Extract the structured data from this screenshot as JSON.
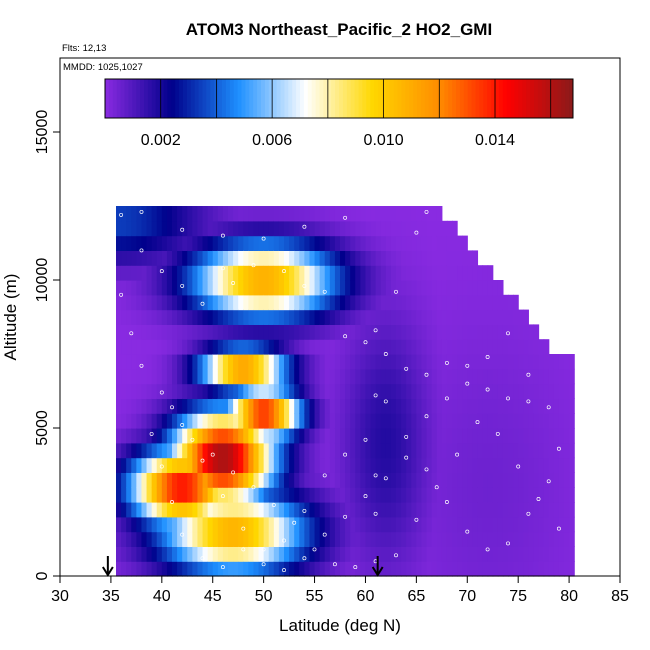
{
  "chart_data": {
    "type": "heatmap",
    "title": "ATOM3 Northeast_Pacific_2 HO2_GMI",
    "flights_label": "Flts: 12,13",
    "mmdd_label": "MMDD: 1025,1027",
    "xlabel": "Latitude (deg N)",
    "ylabel": "Altitude (m)",
    "xlim": [
      30,
      85
    ],
    "ylim": [
      0,
      17500
    ],
    "x_ticks": [
      "30",
      "35",
      "40",
      "45",
      "50",
      "55",
      "60",
      "65",
      "70",
      "75",
      "80",
      "85"
    ],
    "y_ticks": [
      "0",
      "5000",
      "10000",
      "15000"
    ],
    "colorbar": {
      "range": [
        0,
        0.0168
      ],
      "tick_labels": [
        "0.002",
        "0.006",
        "0.010",
        "0.014"
      ],
      "tick_values": [
        0.002,
        0.006,
        0.01,
        0.014
      ],
      "colors": [
        "#8a2be2",
        "#00008b",
        "#1e90ff",
        "#ffffff",
        "#ffd700",
        "#ff8c00",
        "#ff0000",
        "#8b1a1a"
      ]
    },
    "arrows_at_latitude": [
      34.7,
      61.2
    ],
    "lat_step": 0.5,
    "alt_step": 500,
    "columns": [
      {
        "lat": 35.5,
        "alt_min": 0,
        "alt_max": 12500
      },
      {
        "lat": 38,
        "alt_min": 0,
        "alt_max": 12500
      },
      {
        "lat": 40,
        "alt_min": 0,
        "alt_max": 12500
      },
      {
        "lat": 50,
        "alt_min": 0,
        "alt_max": 12500
      },
      {
        "lat": 60,
        "alt_min": 0,
        "alt_max": 12500
      },
      {
        "lat": 66.5,
        "alt_min": 0,
        "alt_max": 12500
      },
      {
        "lat": 70,
        "alt_min": 0,
        "alt_max": 11000
      },
      {
        "lat": 75,
        "alt_min": 0,
        "alt_max": 9000
      },
      {
        "lat": 78,
        "alt_min": 0,
        "alt_max": 7500
      },
      {
        "lat": 80.3,
        "alt_min": 0,
        "alt_max": 7500
      }
    ],
    "features": [
      {
        "lat": 46,
        "alt": 4000,
        "value": 0.0165,
        "sigma_lat": 3.5,
        "sigma_alt": 1100
      },
      {
        "lat": 42,
        "alt": 3000,
        "value": 0.0145,
        "sigma_lat": 3.5,
        "sigma_alt": 900
      },
      {
        "lat": 50,
        "alt": 5500,
        "value": 0.0145,
        "sigma_lat": 2.5,
        "sigma_alt": 600
      },
      {
        "lat": 48,
        "alt": 7000,
        "value": 0.0125,
        "sigma_lat": 3,
        "sigma_alt": 500
      },
      {
        "lat": 50,
        "alt": 10000,
        "value": 0.0112,
        "sigma_lat": 5,
        "sigma_alt": 900
      },
      {
        "lat": 47,
        "alt": 1500,
        "value": 0.011,
        "sigma_lat": 5,
        "sigma_alt": 1000
      },
      {
        "lat": 35.5,
        "alt": 12000,
        "value": 0.0035,
        "sigma_lat": 6,
        "sigma_alt": 1000
      },
      {
        "lat": 62,
        "alt": 4500,
        "value": 0.0018,
        "sigma_lat": 3,
        "sigma_alt": 3000
      },
      {
        "lat": 72,
        "alt": 3000,
        "value": 0.0005,
        "sigma_lat": 6,
        "sigma_alt": 4000
      }
    ],
    "observations": [
      [
        36,
        12200
      ],
      [
        38,
        11000
      ],
      [
        40,
        10300
      ],
      [
        42,
        9800
      ],
      [
        44,
        9200
      ],
      [
        46,
        10400
      ],
      [
        47,
        9900
      ],
      [
        49,
        10500
      ],
      [
        52,
        10300
      ],
      [
        54,
        9800
      ],
      [
        56,
        9600
      ],
      [
        58,
        8100
      ],
      [
        60,
        7900
      ],
      [
        62,
        7500
      ],
      [
        64,
        7000
      ],
      [
        66,
        6800
      ],
      [
        68,
        7200
      ],
      [
        70,
        6500
      ],
      [
        72,
        6300
      ],
      [
        74,
        6000
      ],
      [
        76,
        5900
      ],
      [
        78,
        5700
      ],
      [
        79,
        4300
      ],
      [
        78,
        3200
      ],
      [
        76,
        2100
      ],
      [
        74,
        1100
      ],
      [
        72,
        900
      ],
      [
        70,
        1500
      ],
      [
        68,
        2500
      ],
      [
        66,
        3600
      ],
      [
        64,
        4700
      ],
      [
        62,
        5900
      ],
      [
        60,
        4600
      ],
      [
        58,
        4100
      ],
      [
        56,
        3400
      ],
      [
        54,
        2200
      ],
      [
        52,
        1200
      ],
      [
        50,
        900
      ],
      [
        48,
        1600
      ],
      [
        46,
        2700
      ],
      [
        44,
        3900
      ],
      [
        42,
        5100
      ],
      [
        40,
        6200
      ],
      [
        41,
        5700
      ],
      [
        43,
        4600
      ],
      [
        45,
        4100
      ],
      [
        47,
        3500
      ],
      [
        49,
        3000
      ],
      [
        51,
        2400
      ],
      [
        53,
        1800
      ],
      [
        55,
        900
      ],
      [
        57,
        400
      ],
      [
        59,
        300
      ],
      [
        61,
        500
      ],
      [
        63,
        700
      ],
      [
        65,
        1900
      ],
      [
        67,
        3000
      ],
      [
        69,
        4100
      ],
      [
        71,
        5200
      ],
      [
        73,
        4800
      ],
      [
        75,
        3700
      ],
      [
        77,
        2600
      ],
      [
        79,
        1600
      ],
      [
        61,
        2100
      ],
      [
        61,
        3400
      ],
      [
        61,
        6100
      ],
      [
        61,
        8300
      ],
      [
        63,
        9600
      ],
      [
        65,
        11600
      ],
      [
        66,
        12300
      ],
      [
        58,
        12100
      ],
      [
        54,
        11800
      ],
      [
        50,
        11400
      ],
      [
        46,
        11500
      ],
      [
        42,
        11700
      ],
      [
        38,
        12300
      ],
      [
        36,
        9500
      ],
      [
        37,
        8200
      ],
      [
        38,
        7100
      ],
      [
        39,
        4800
      ],
      [
        40,
        3700
      ],
      [
        41,
        2500
      ],
      [
        42,
        1400
      ],
      [
        44,
        600
      ],
      [
        46,
        300
      ],
      [
        48,
        900
      ],
      [
        50,
        400
      ],
      [
        52,
        200
      ],
      [
        54,
        600
      ],
      [
        56,
        1400
      ],
      [
        58,
        2000
      ],
      [
        60,
        2700
      ],
      [
        62,
        3300
      ],
      [
        64,
        4000
      ],
      [
        66,
        5400
      ],
      [
        68,
        6000
      ],
      [
        70,
        7100
      ],
      [
        72,
        7400
      ],
      [
        74,
        8200
      ],
      [
        76,
        6800
      ]
    ]
  }
}
